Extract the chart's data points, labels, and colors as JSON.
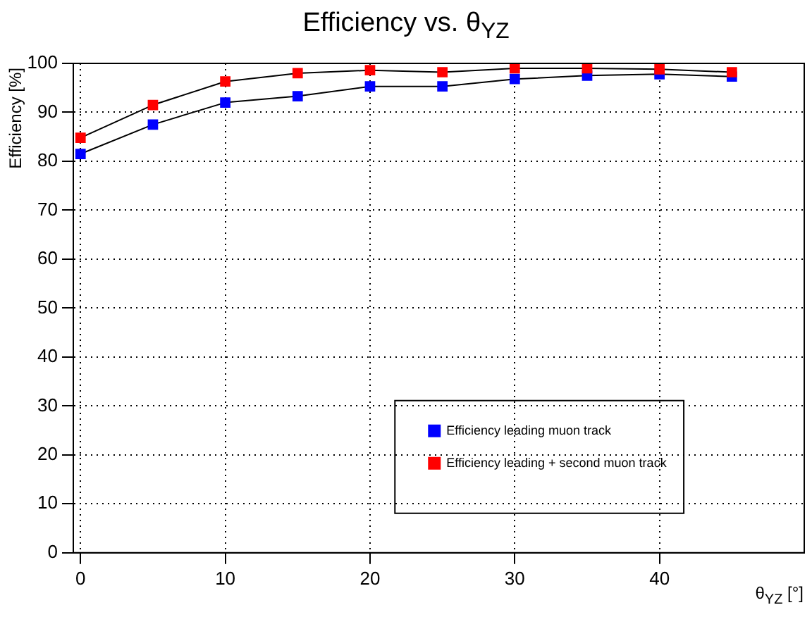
{
  "chart_data": {
    "type": "line",
    "title": "Efficiency vs. θ$_{YZ}$",
    "xlabel": "θ$_{YZ}$ [°]",
    "ylabel": "Efficiency [%]",
    "x": [
      0,
      5,
      10,
      15,
      20,
      25,
      30,
      35,
      40,
      45
    ],
    "series": [
      {
        "name": "Efficiency leading muon track",
        "color": "#0000ff",
        "values": [
          81.5,
          87.5,
          92,
          93.3,
          95.3,
          95.3,
          96.8,
          97.5,
          97.8,
          97.3
        ]
      },
      {
        "name": "Efficiency leading + second muon track",
        "color": "#ff0000",
        "values": [
          84.8,
          91.5,
          96.3,
          98,
          98.6,
          98.2,
          99,
          99,
          98.8,
          98.2
        ]
      }
    ],
    "xlim": [
      -0.5,
      50
    ],
    "xticks": [
      0,
      10,
      20,
      30,
      40
    ],
    "ylim": [
      0,
      100
    ],
    "yticks": [
      0,
      10,
      20,
      30,
      40,
      50,
      60,
      70,
      80,
      90,
      100
    ],
    "grid": true,
    "legend": "bottom right",
    "marker": "square",
    "line_style": "solid"
  }
}
